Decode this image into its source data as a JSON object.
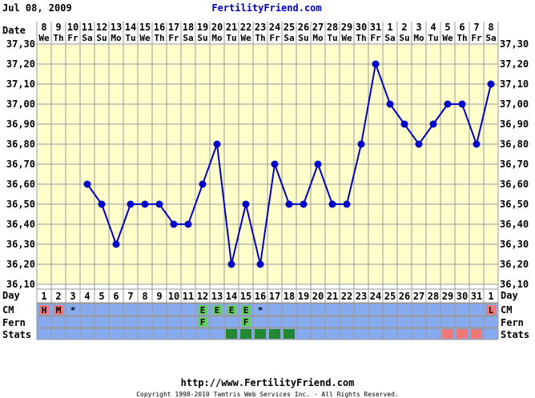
{
  "header": {
    "date": "Jul 08, 2009",
    "brand": "FertilityFriend.com"
  },
  "footer": {
    "url": "http://www.FertilityFriend.com",
    "copyright": "Copyright 1998-2010 Tamtris Web Services Inc. - All Rights Reserved."
  },
  "row_labels": {
    "date": "Date",
    "day": "Day",
    "cm": "CM",
    "fern": "Fern",
    "stats": "Stats"
  },
  "colors": {
    "background": "#ffffff",
    "plot_bg": "#ffffcc",
    "grid": "#999999",
    "line": "#0000cc",
    "brand": "#0000cc",
    "row_blue": "#88aaee",
    "cm_menses": "#ee7777",
    "cm_egg": "#66cc66",
    "stats_green": "#228833",
    "stats_pink": "#ee7777"
  },
  "chart_data": {
    "type": "line",
    "ylim": [
      36.1,
      37.3
    ],
    "yticks": [
      "36,10",
      "36,20",
      "36,30",
      "36,40",
      "36,50",
      "36,60",
      "36,70",
      "36,80",
      "36,90",
      "37,00",
      "37,10",
      "37,20",
      "37,30"
    ],
    "dates": [
      "8",
      "9",
      "10",
      "11",
      "12",
      "13",
      "14",
      "15",
      "16",
      "17",
      "18",
      "19",
      "20",
      "21",
      "22",
      "23",
      "24",
      "25",
      "26",
      "27",
      "28",
      "29",
      "30",
      "31",
      "1",
      "2",
      "3",
      "4",
      "5",
      "6",
      "7",
      "8"
    ],
    "weekdays": [
      "We",
      "Th",
      "Fr",
      "Sa",
      "Su",
      "Mo",
      "Tu",
      "We",
      "Th",
      "Fr",
      "Sa",
      "Su",
      "Mo",
      "Tu",
      "We",
      "Th",
      "Fr",
      "Sa",
      "Su",
      "Mo",
      "Tu",
      "We",
      "Th",
      "Fr",
      "Sa",
      "Su",
      "Mo",
      "Tu",
      "We",
      "Th",
      "Fr",
      "Sa"
    ],
    "cycle_days": [
      "1",
      "2",
      "3",
      "4",
      "5",
      "6",
      "7",
      "8",
      "9",
      "10",
      "11",
      "12",
      "13",
      "14",
      "15",
      "16",
      "17",
      "18",
      "19",
      "20",
      "21",
      "22",
      "23",
      "24",
      "25",
      "26",
      "27",
      "28",
      "29",
      "30",
      "31",
      "1"
    ],
    "temperatures": [
      null,
      null,
      null,
      36.6,
      36.5,
      36.3,
      36.5,
      36.5,
      36.5,
      36.4,
      36.4,
      36.6,
      36.8,
      36.2,
      36.5,
      36.2,
      36.7,
      36.5,
      36.5,
      36.7,
      36.5,
      36.5,
      36.8,
      37.2,
      37.0,
      36.9,
      36.8,
      36.9,
      37.0,
      37.0,
      36.8,
      37.1
    ],
    "cm": [
      "H",
      "M",
      "*",
      "",
      "",
      "",
      "",
      "",
      "",
      "",
      "",
      "E",
      "E",
      "E",
      "E",
      "*",
      "",
      "",
      "",
      "",
      "",
      "",
      "",
      "",
      "",
      "",
      "",
      "",
      "",
      "",
      "",
      "L"
    ],
    "fern": [
      "",
      "",
      "",
      "",
      "",
      "",
      "",
      "",
      "",
      "",
      "",
      "F",
      "",
      "",
      "F",
      "",
      "",
      "",
      "",
      "",
      "",
      "",
      "",
      "",
      "",
      "",
      "",
      "",
      "",
      "",
      "",
      ""
    ],
    "stats": [
      "",
      "",
      "",
      "",
      "",
      "",
      "",
      "",
      "",
      "",
      "",
      "",
      "",
      "g",
      "g",
      "g",
      "g",
      "g",
      "",
      "",
      "",
      "",
      "",
      "",
      "",
      "",
      "",
      "",
      "p",
      "p",
      "p",
      ""
    ]
  }
}
